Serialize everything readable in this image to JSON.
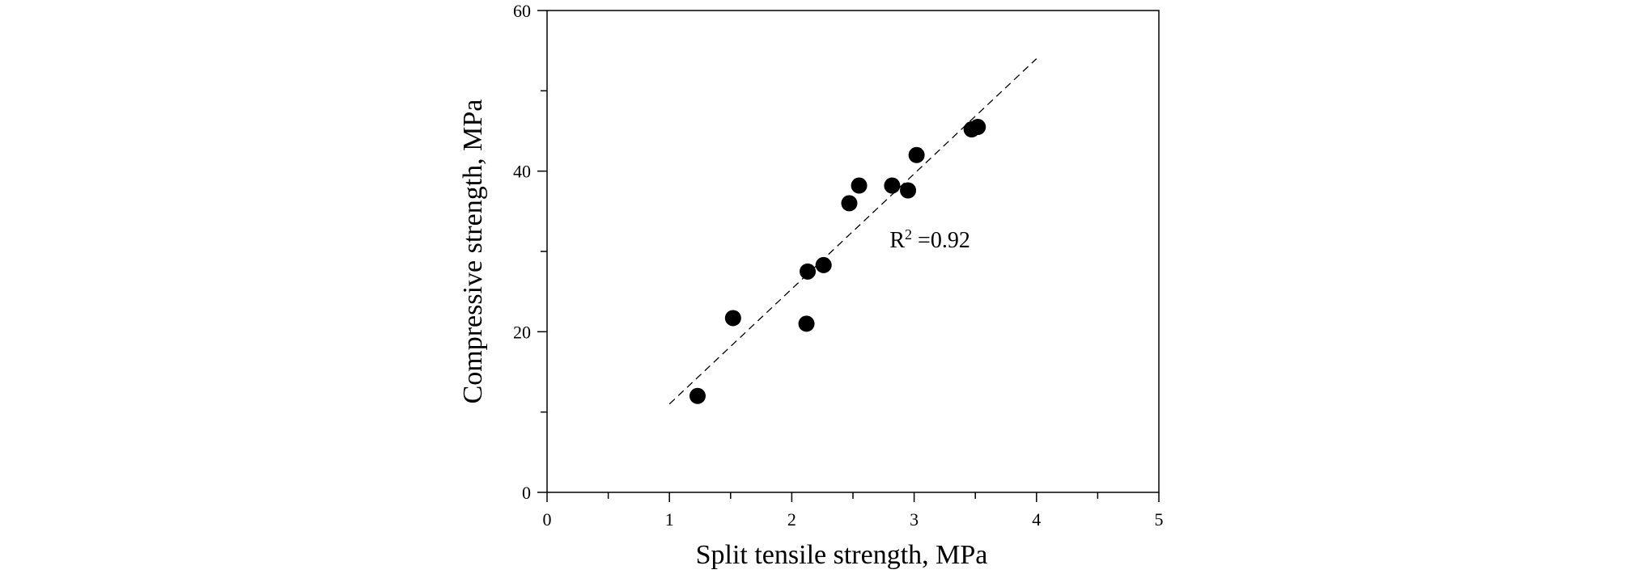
{
  "chart_data": {
    "type": "scatter",
    "title": "",
    "xlabel": "Split tensile strength, MPa",
    "ylabel": "Compressive strength, MPa",
    "xlim": [
      0,
      5
    ],
    "ylim": [
      0,
      60
    ],
    "xticks": [
      "0",
      "1",
      "2",
      "3",
      "4",
      "5"
    ],
    "yticks": [
      "0",
      "20",
      "40",
      "60"
    ],
    "minor_x_step": 0.5,
    "minor_y_step": 10,
    "grid": false,
    "legend": "none",
    "series": [
      {
        "points": [
          [
            1.23,
            12.0
          ],
          [
            1.52,
            21.7
          ],
          [
            2.12,
            21.0
          ],
          [
            2.13,
            27.5
          ],
          [
            2.26,
            28.3
          ],
          [
            2.47,
            36.0
          ],
          [
            2.55,
            38.2
          ],
          [
            2.82,
            38.2
          ],
          [
            2.95,
            37.6
          ],
          [
            3.02,
            42.0
          ],
          [
            3.47,
            45.2
          ],
          [
            3.52,
            45.5
          ]
        ],
        "color": "#000000"
      }
    ],
    "fit_line": {
      "x": [
        1.0,
        4.0
      ],
      "y": [
        11.0,
        54.0
      ],
      "style": "dashed"
    },
    "annotation": {
      "text_base": "R",
      "superscript": "2",
      "text_rest": " =0.92",
      "x": 2.8,
      "y": 30.5
    }
  }
}
